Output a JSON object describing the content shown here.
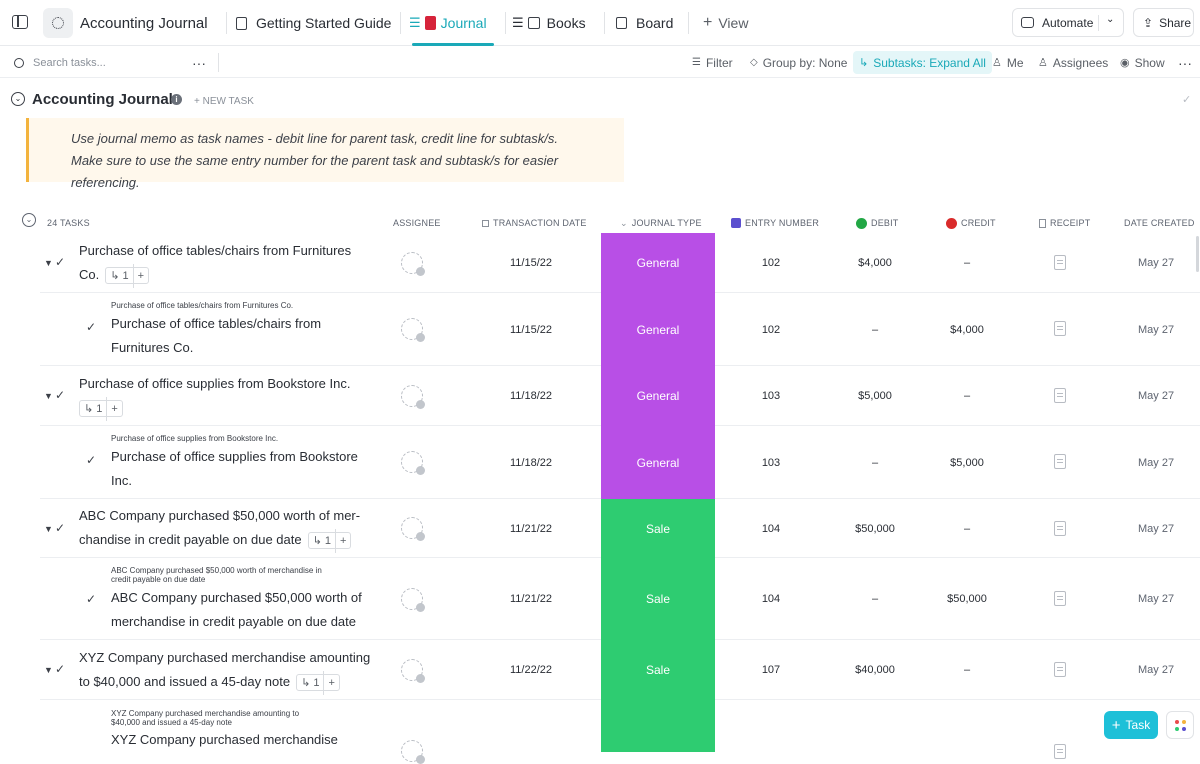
{
  "topbar": {
    "title": "Accounting Journal",
    "tabs": [
      {
        "label": "Getting Started Guide",
        "icon": "document-icon"
      },
      {
        "label": "Journal",
        "icon": "list-book-icon",
        "active": true
      },
      {
        "label": "Books",
        "icon": "list-book-icon"
      },
      {
        "label": "Board",
        "icon": "board-icon"
      }
    ],
    "add_view": "View",
    "automate": "Automate",
    "share": "Share",
    "accent": "#1aa9b8"
  },
  "toolbar": {
    "search_placeholder": "Search tasks...",
    "filter": "Filter",
    "group_by": "Group by: None",
    "subtasks": "Subtasks: Expand All",
    "me": "Me",
    "assignees": "Assignees",
    "show": "Show"
  },
  "section": {
    "title": "Accounting Journal",
    "new_task": "+ NEW TASK",
    "note_line1": "Use journal memo as task names - debit line for parent task, credit line for subtask/s.",
    "note_line2": "Make sure to use the same entry number for the parent task and subtask/s for easier referencing."
  },
  "table": {
    "count": "24 TASKS",
    "headers": {
      "assignee": "ASSIGNEE",
      "transaction_date": "TRANSACTION DATE",
      "journal_type": "JOURNAL TYPE",
      "entry_number": "ENTRY NUMBER",
      "debit": "DEBIT",
      "credit": "CREDIT",
      "receipt": "RECEIPT",
      "date_created": "DATE CREATED"
    },
    "colors": {
      "general": "#b84fe6",
      "sale": "#2ecc71",
      "debit_dot": "#22a745",
      "credit_dot": "#d92b2b"
    },
    "rows": [
      {
        "name_l1": "Purchase of office tables/chairs from Furnitures",
        "name_l2": "Co.",
        "subcount": "1",
        "date": "11/15/22",
        "type": "General",
        "entry": "102",
        "debit": "$4,000",
        "credit": "–",
        "created": "May 27"
      },
      {
        "parent": "Purchase of office tables/chairs from Furnitures Co.",
        "name_l1": "Purchase of office tables/chairs from",
        "name_l2": "Furnitures Co.",
        "date": "11/15/22",
        "type": "General",
        "entry": "102",
        "debit": "–",
        "credit": "$4,000",
        "created": "May 27"
      },
      {
        "name_l1": "Purchase of office supplies from Bookstore Inc.",
        "subcount": "1",
        "date": "11/18/22",
        "type": "General",
        "entry": "103",
        "debit": "$5,000",
        "credit": "–",
        "created": "May 27"
      },
      {
        "parent": "Purchase of office supplies from Bookstore Inc.",
        "name_l1": "Purchase of office supplies from Bookstore",
        "name_l2": "Inc.",
        "date": "11/18/22",
        "type": "General",
        "entry": "103",
        "debit": "–",
        "credit": "$5,000",
        "created": "May 27"
      },
      {
        "name_l1": "ABC Company purchased $50,000 worth of mer-",
        "name_l2": "chandise in credit payable on due date",
        "subcount": "1",
        "date": "11/21/22",
        "type": "Sale",
        "entry": "104",
        "debit": "$50,000",
        "credit": "–",
        "created": "May 27"
      },
      {
        "parent_l1": "ABC Company purchased $50,000 worth of merchandise in",
        "parent_l2": "credit payable on due date",
        "name_l1": "ABC Company purchased $50,000 worth of",
        "name_l2": "merchandise in credit payable on due date",
        "date": "11/21/22",
        "type": "Sale",
        "entry": "104",
        "debit": "–",
        "credit": "$50,000",
        "created": "May 27"
      },
      {
        "name_l1": "XYZ Company purchased merchandise amounting",
        "name_l2": "to $40,000 and issued a 45-day note",
        "subcount": "1",
        "date": "11/22/22",
        "type": "Sale",
        "entry": "107",
        "debit": "$40,000",
        "credit": "–",
        "created": "May 27"
      },
      {
        "parent_l1": "XYZ Company purchased merchandise amounting to",
        "parent_l2": "$40,000 and issued a 45-day note",
        "name_l1": "XYZ Company purchased merchandise",
        "type": "Sale"
      }
    ]
  },
  "bottom": {
    "task_button": "Task"
  }
}
